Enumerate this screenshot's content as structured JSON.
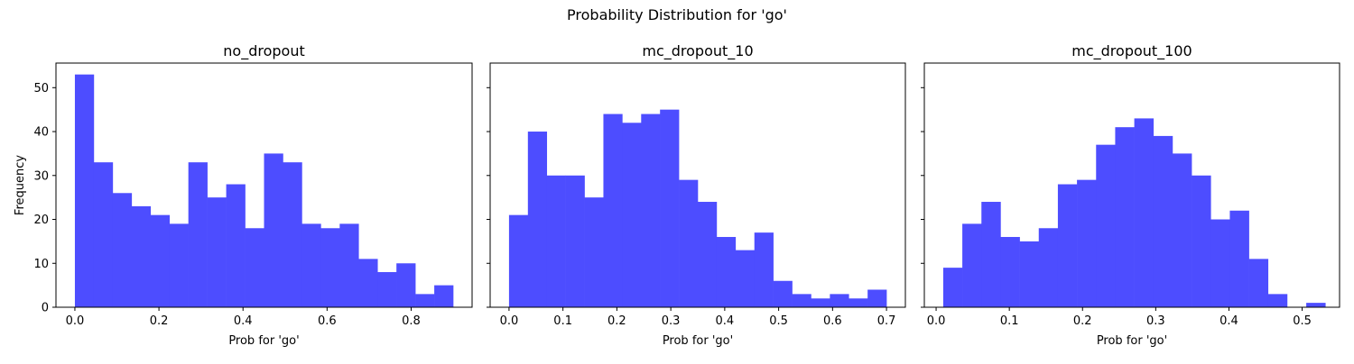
{
  "figure": {
    "suptitle": "Probability Distribution for 'go'"
  },
  "chart_data": [
    {
      "type": "bar",
      "title": "no_dropout",
      "xlabel": "Prob for 'go'",
      "ylabel": "Frequency",
      "color": "#4d4dff",
      "xlim": [
        -0.045,
        0.945
      ],
      "ylim": [
        0,
        55.6
      ],
      "xticks": [
        0.0,
        0.2,
        0.4,
        0.6,
        0.8
      ],
      "yticks": [
        0,
        10,
        20,
        30,
        40,
        50
      ],
      "bin_edges": [
        0.0,
        0.045,
        0.09,
        0.135,
        0.18,
        0.225,
        0.27,
        0.315,
        0.36,
        0.405,
        0.45,
        0.495,
        0.54,
        0.585,
        0.63,
        0.675,
        0.72,
        0.765,
        0.81,
        0.855,
        0.9
      ],
      "values": [
        53,
        33,
        26,
        23,
        21,
        19,
        33,
        25,
        28,
        18,
        35,
        33,
        19,
        18,
        19,
        11,
        8,
        10,
        3,
        5
      ]
    },
    {
      "type": "bar",
      "title": "mc_dropout_10",
      "xlabel": "Prob for 'go'",
      "ylabel": "",
      "color": "#4d4dff",
      "xlim": [
        -0.035,
        0.735
      ],
      "ylim": [
        0,
        55.6
      ],
      "xticks": [
        0.0,
        0.1,
        0.2,
        0.3,
        0.4,
        0.5,
        0.6,
        0.7
      ],
      "yticks": [
        0,
        10,
        20,
        30,
        40,
        50
      ],
      "bin_edges": [
        0.0,
        0.035,
        0.07,
        0.105,
        0.14,
        0.175,
        0.21,
        0.245,
        0.28,
        0.315,
        0.35,
        0.385,
        0.42,
        0.455,
        0.49,
        0.525,
        0.56,
        0.595,
        0.63,
        0.665,
        0.7
      ],
      "values": [
        21,
        40,
        30,
        30,
        25,
        44,
        42,
        44,
        45,
        29,
        24,
        16,
        13,
        17,
        6,
        3,
        2,
        3,
        2,
        4
      ]
    },
    {
      "type": "bar",
      "title": "mc_dropout_100",
      "xlabel": "Prob for 'go'",
      "ylabel": "",
      "color": "#4d4dff",
      "xlim": [
        -0.0161,
        0.5511
      ],
      "ylim": [
        0,
        55.6
      ],
      "xticks": [
        0.0,
        0.1,
        0.2,
        0.3,
        0.4,
        0.5
      ],
      "yticks": [
        0,
        10,
        20,
        30,
        40,
        50
      ],
      "bin_edges": [
        0.0097,
        0.0358,
        0.0619,
        0.088,
        0.1141,
        0.1402,
        0.1663,
        0.1924,
        0.2185,
        0.2446,
        0.2707,
        0.2968,
        0.3229,
        0.349,
        0.3751,
        0.4012,
        0.4273,
        0.4534,
        0.4795,
        0.5056,
        0.5317
      ],
      "values": [
        9,
        19,
        24,
        16,
        15,
        18,
        28,
        29,
        37,
        41,
        43,
        39,
        35,
        30,
        20,
        22,
        11,
        3,
        0,
        1
      ]
    }
  ]
}
